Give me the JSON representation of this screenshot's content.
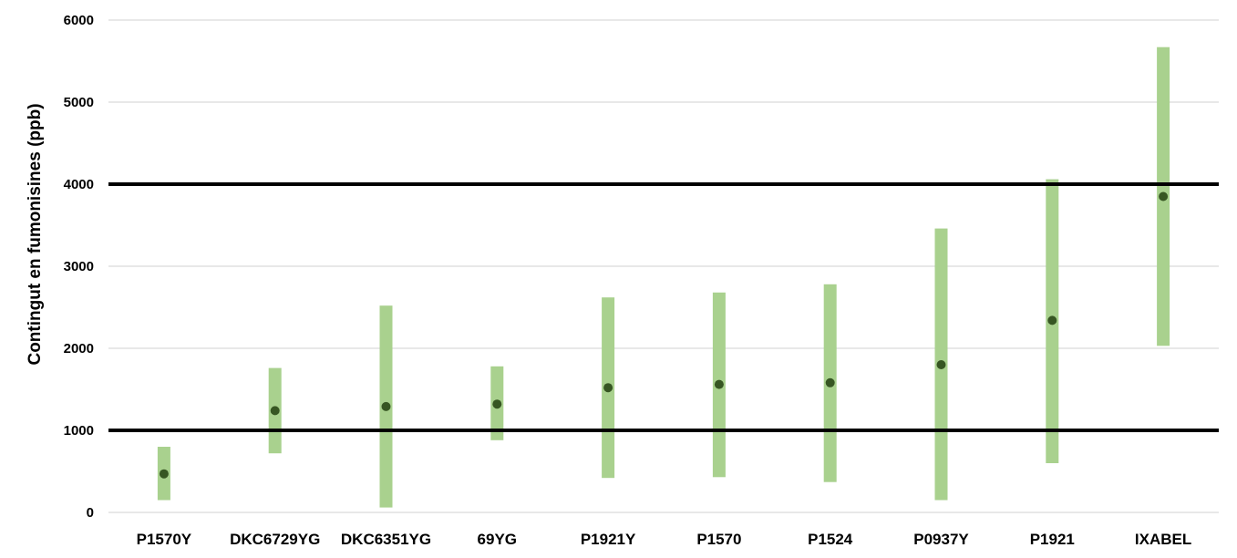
{
  "chart_data": {
    "type": "scatter",
    "ylabel": "Contingut en fumonisines (ppb)",
    "ylim": [
      0,
      6000
    ],
    "yticks": [
      0,
      1000,
      2000,
      3000,
      4000,
      5000,
      6000
    ],
    "grid": true,
    "categories": [
      "P1570Y",
      "DKC6729YG",
      "DKC6351YG",
      "69YG",
      "P1921Y",
      "P1570",
      "P1524",
      "P0937Y",
      "P1921",
      "IXABEL"
    ],
    "values": [
      470,
      1240,
      1290,
      1320,
      1520,
      1560,
      1580,
      1800,
      2340,
      3850
    ],
    "range_low": [
      150,
      720,
      60,
      880,
      420,
      430,
      370,
      150,
      600,
      2030
    ],
    "range_high": [
      800,
      1760,
      2520,
      1780,
      2620,
      2680,
      2780,
      3460,
      4060,
      5670
    ],
    "reference_lines": [
      1000,
      4000
    ],
    "colors": {
      "range_bar": "#a9d18e",
      "point": "#375623",
      "reference_line": "#000000",
      "grid": "#d9d9d9"
    }
  }
}
